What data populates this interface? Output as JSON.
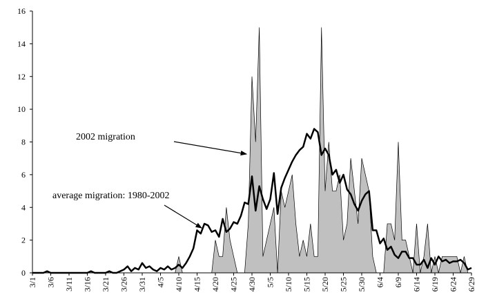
{
  "chart_data": {
    "type": "area_line",
    "categories": [
      "3/1",
      null,
      null,
      null,
      null,
      "3/6",
      null,
      null,
      null,
      null,
      "3/11",
      null,
      null,
      null,
      null,
      "3/16",
      null,
      null,
      null,
      null,
      "3/21",
      null,
      null,
      null,
      null,
      "3/26",
      null,
      null,
      null,
      null,
      "3/31",
      null,
      null,
      null,
      null,
      "4/5",
      null,
      null,
      null,
      null,
      "4/10",
      null,
      null,
      null,
      null,
      "4/15",
      null,
      null,
      null,
      null,
      "4/20",
      null,
      null,
      null,
      null,
      "4/25",
      null,
      null,
      null,
      null,
      "4/30",
      null,
      null,
      null,
      null,
      "5/5",
      null,
      null,
      null,
      null,
      "5/10",
      null,
      null,
      null,
      null,
      "5/15",
      null,
      null,
      null,
      null,
      "5/20",
      null,
      null,
      null,
      null,
      "5/25",
      null,
      null,
      null,
      null,
      "5/30",
      null,
      null,
      null,
      null,
      "6/4",
      null,
      null,
      null,
      null,
      "6/9",
      null,
      null,
      null,
      null,
      "6/14",
      null,
      null,
      null,
      null,
      "6/19",
      null,
      null,
      null,
      null,
      "6/24",
      null,
      null,
      null,
      null,
      "6/29"
    ],
    "series": [
      {
        "kind": "area",
        "color": "#c0c0c0",
        "values": [
          0,
          0,
          0,
          0,
          0,
          0,
          0,
          0,
          0,
          0,
          0,
          0,
          0,
          0,
          0,
          0,
          0,
          0,
          0,
          0,
          0,
          0,
          0,
          0,
          0,
          0,
          0,
          0,
          0,
          0,
          0,
          0,
          0,
          0,
          0,
          0,
          0,
          0,
          0,
          0,
          1,
          0,
          0,
          0,
          0,
          0,
          0,
          0,
          0,
          0,
          2,
          1,
          1,
          4,
          2,
          1,
          0,
          0,
          0,
          3,
          12,
          8,
          15,
          1,
          2,
          3,
          4,
          0,
          5,
          4,
          5,
          6,
          3,
          1,
          2,
          1,
          3,
          1,
          1,
          15,
          5,
          8,
          5,
          5,
          6,
          2,
          3,
          7,
          5,
          3,
          7,
          6,
          5,
          1,
          0,
          0,
          0,
          3,
          3,
          2,
          8,
          2,
          2,
          1,
          0,
          3,
          0,
          1,
          3,
          0,
          1,
          0,
          1,
          1,
          1,
          1,
          1,
          0,
          1,
          0,
          0
        ]
      },
      {
        "kind": "line",
        "color": "#000000",
        "values": [
          0,
          0,
          0,
          0,
          0.1,
          0,
          0,
          0,
          0,
          0,
          0,
          0,
          0,
          0,
          0,
          0,
          0.1,
          0,
          0,
          0,
          0,
          0.1,
          0,
          0,
          0.1,
          0.2,
          0.4,
          0.1,
          0.3,
          0.2,
          0.6,
          0.3,
          0.4,
          0.2,
          0.1,
          0.3,
          0.2,
          0.4,
          0.2,
          0.3,
          0.5,
          0.3,
          0.6,
          1.0,
          1.5,
          2.6,
          2.4,
          3.0,
          2.9,
          2.5,
          2.6,
          2.2,
          3.3,
          2.5,
          2.7,
          3.1,
          3.0,
          3.5,
          4.3,
          4.2,
          5.9,
          3.8,
          5.3,
          4.5,
          3.9,
          4.5,
          6.1,
          3.6,
          5.2,
          5.8,
          6.3,
          6.8,
          7.2,
          7.5,
          7.7,
          8.5,
          8.2,
          8.8,
          8.6,
          7.2,
          7.6,
          7.2,
          6.0,
          6.3,
          5.5,
          6.0,
          5.1,
          4.8,
          4.2,
          3.8,
          4.4,
          4.8,
          5.0,
          2.6,
          2.6,
          1.8,
          2.1,
          1.4,
          1.6,
          1.1,
          0.9,
          1.3,
          1.3,
          0.9,
          0.9,
          0.5,
          0.5,
          0.8,
          0.3,
          0.9,
          0.5,
          1.0,
          0.7,
          0.8,
          0.6,
          0.7,
          0.7,
          0.8,
          0.6,
          0.2,
          0.3
        ]
      }
    ],
    "annotations": [
      "2002 migration",
      "average migration: 1980-2002"
    ],
    "ylim": [
      0,
      16
    ],
    "yticks": [
      0,
      2,
      4,
      6,
      8,
      10,
      12,
      14,
      16
    ],
    "grid": false
  }
}
